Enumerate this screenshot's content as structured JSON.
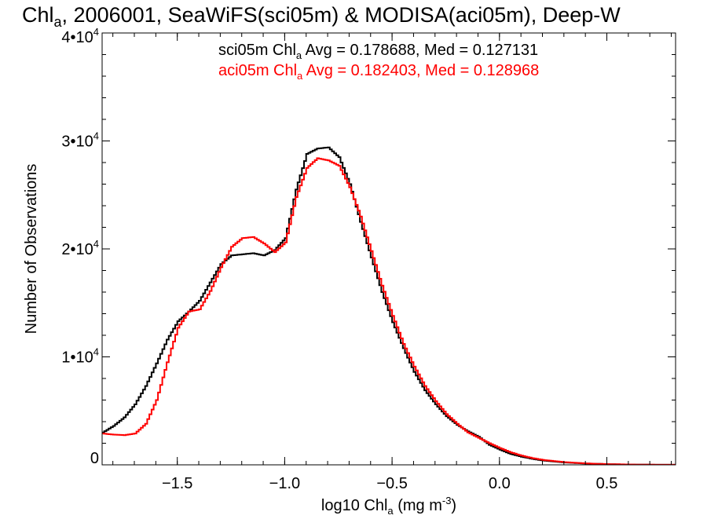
{
  "chart_data": {
    "type": "line",
    "title": {
      "pre": "Chl",
      "sub": "a",
      "post": ", 2006001, SeaWiFS(sci05m) & MODISA(aci05m), Deep-W"
    },
    "xlabel": {
      "pre": "log10 Chl",
      "sub": "a",
      "post": " (mg m",
      "sup": "-3",
      "close": ")"
    },
    "ylabel": "Number of Observations",
    "xlim": [
      -1.85,
      0.82
    ],
    "ylim": [
      0,
      40000
    ],
    "x_ticks": [
      {
        "value": -1.5,
        "label": "−1.5"
      },
      {
        "value": -1.0,
        "label": "−1.0"
      },
      {
        "value": -0.5,
        "label": "−0.5"
      },
      {
        "value": 0.0,
        "label": "0.0"
      },
      {
        "value": 0.5,
        "label": "0.5"
      }
    ],
    "y_ticks": [
      {
        "value": 0,
        "mant": "0",
        "exp": ""
      },
      {
        "value": 10000,
        "mant": "1•10",
        "exp": "4"
      },
      {
        "value": 20000,
        "mant": "2•10",
        "exp": "4"
      },
      {
        "value": 30000,
        "mant": "3•10",
        "exp": "4"
      },
      {
        "value": 40000,
        "mant": "4•10",
        "exp": "4"
      }
    ],
    "grid": false,
    "legend": [
      {
        "pre": "sci05m Chl",
        "sub": "a",
        "post": " Avg = 0.178688, Med = 0.127131",
        "color": "#000000"
      },
      {
        "pre": "aci05m Chl",
        "sub": "a",
        "post": " Avg = 0.182403, Med = 0.128968",
        "color": "#ff0000"
      }
    ],
    "legend_position": "top-center",
    "series": [
      {
        "color": "#000000",
        "x": [
          -1.85,
          -1.8,
          -1.75,
          -1.7,
          -1.65,
          -1.6,
          -1.55,
          -1.5,
          -1.45,
          -1.4,
          -1.35,
          -1.3,
          -1.25,
          -1.2,
          -1.15,
          -1.1,
          -1.05,
          -1.0,
          -0.95,
          -0.9,
          -0.85,
          -0.8,
          -0.75,
          -0.7,
          -0.65,
          -0.6,
          -0.55,
          -0.5,
          -0.45,
          -0.4,
          -0.35,
          -0.3,
          -0.25,
          -0.2,
          -0.15,
          -0.1,
          -0.05,
          0.0,
          0.05,
          0.1,
          0.15,
          0.2,
          0.3,
          0.4,
          0.5,
          0.6,
          0.7,
          0.82
        ],
        "y": [
          3000,
          3600,
          4400,
          5600,
          7300,
          9400,
          11600,
          13300,
          14200,
          15200,
          16900,
          18600,
          19400,
          19500,
          19600,
          19400,
          19900,
          21000,
          25500,
          28800,
          29300,
          29400,
          28500,
          26000,
          22500,
          19200,
          16000,
          13200,
          10800,
          8600,
          6900,
          5600,
          4500,
          3700,
          3100,
          2600,
          1850,
          1400,
          1000,
          750,
          550,
          400,
          220,
          120,
          60,
          25,
          10,
          5
        ]
      },
      {
        "color": "#ff0000",
        "x": [
          -1.85,
          -1.8,
          -1.75,
          -1.7,
          -1.65,
          -1.6,
          -1.55,
          -1.5,
          -1.45,
          -1.4,
          -1.35,
          -1.3,
          -1.25,
          -1.2,
          -1.15,
          -1.1,
          -1.05,
          -1.0,
          -0.95,
          -0.9,
          -0.85,
          -0.8,
          -0.75,
          -0.7,
          -0.65,
          -0.6,
          -0.55,
          -0.5,
          -0.45,
          -0.4,
          -0.35,
          -0.3,
          -0.25,
          -0.2,
          -0.15,
          -0.1,
          -0.05,
          0.0,
          0.05,
          0.1,
          0.15,
          0.2,
          0.3,
          0.4,
          0.5,
          0.6,
          0.7,
          0.82
        ],
        "y": [
          2900,
          2800,
          2750,
          2900,
          3800,
          6000,
          9500,
          12700,
          14200,
          14400,
          16100,
          18300,
          20200,
          21000,
          21100,
          20500,
          19700,
          20600,
          24800,
          27500,
          28400,
          28200,
          27700,
          25700,
          23000,
          19800,
          16600,
          13800,
          11200,
          9100,
          7300,
          5900,
          4700,
          3800,
          3000,
          2500,
          2000,
          1550,
          1150,
          850,
          620,
          450,
          250,
          130,
          65,
          30,
          12,
          5
        ]
      }
    ]
  }
}
